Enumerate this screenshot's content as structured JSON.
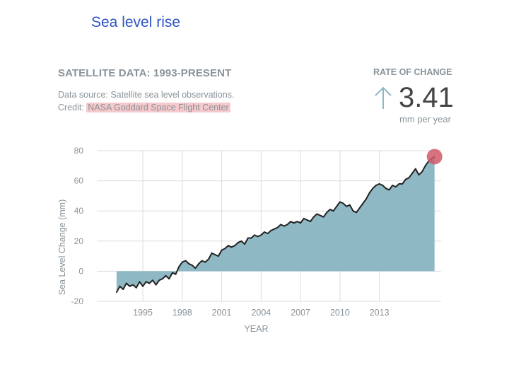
{
  "slide": {
    "title": "Sea level rise"
  },
  "header": {
    "title": "SATELLITE DATA: 1993-PRESENT",
    "source": "Data source: Satellite sea level observations.",
    "credit_prefix": "Credit: ",
    "credit_name": "NASA Goddard Space Flight Center"
  },
  "rate": {
    "label": "RATE OF CHANGE",
    "value": "3.41",
    "unit": "mm per year",
    "icon": "up-arrow-icon"
  },
  "colors": {
    "fill": "#8fb8c5",
    "line": "#222222",
    "marker": "#cf5b67",
    "grid": "#d9dcde",
    "text": "#8a9399",
    "title": "#2f55c6"
  },
  "chart_data": {
    "type": "area",
    "xlabel": "YEAR",
    "ylabel": "Sea Level Change (mm)",
    "xlim": [
      1991.5,
      2017.7
    ],
    "ylim": [
      -20,
      80
    ],
    "xticks": [
      1995,
      1998,
      2001,
      2004,
      2007,
      2010,
      2013
    ],
    "yticks": [
      80,
      60,
      40,
      20,
      0,
      -20
    ],
    "grid": true,
    "series": [
      {
        "x": [
          1993.0,
          1993.25,
          1993.5,
          1993.75,
          1994.0,
          1994.25,
          1994.5,
          1994.75,
          1995.0,
          1995.25,
          1995.5,
          1995.75,
          1996.0,
          1996.25,
          1996.5,
          1996.75,
          1997.0,
          1997.25,
          1997.5,
          1997.75,
          1998.0,
          1998.25,
          1998.5,
          1998.75,
          1999.0,
          1999.25,
          1999.5,
          1999.75,
          2000.0,
          2000.25,
          2000.5,
          2000.75,
          2001.0,
          2001.25,
          2001.5,
          2001.75,
          2002.0,
          2002.25,
          2002.5,
          2002.75,
          2003.0,
          2003.25,
          2003.5,
          2003.75,
          2004.0,
          2004.25,
          2004.5,
          2004.75,
          2005.0,
          2005.25,
          2005.5,
          2005.75,
          2006.0,
          2006.25,
          2006.5,
          2006.75,
          2007.0,
          2007.25,
          2007.5,
          2007.75,
          2008.0,
          2008.25,
          2008.5,
          2008.75,
          2009.0,
          2009.25,
          2009.5,
          2009.75,
          2010.0,
          2010.25,
          2010.5,
          2010.75,
          2011.0,
          2011.25,
          2011.5,
          2011.75,
          2012.0,
          2012.25,
          2012.5,
          2012.75,
          2013.0,
          2013.25,
          2013.5,
          2013.75,
          2014.0,
          2014.25,
          2014.5,
          2014.75,
          2015.0,
          2015.25,
          2015.5,
          2015.75,
          2016.0,
          2016.25,
          2016.5,
          2016.75,
          2017.0,
          2017.2
        ],
        "values": [
          -14,
          -10,
          -12,
          -8,
          -10,
          -9,
          -11,
          -7,
          -10,
          -7,
          -8,
          -6,
          -9,
          -6,
          -5,
          -3,
          -5,
          -1,
          -2,
          3,
          6,
          7,
          5,
          4,
          2,
          5,
          7,
          6,
          8,
          12,
          11,
          10,
          14,
          15,
          17,
          16,
          17,
          19,
          20,
          18,
          22,
          22,
          24,
          23,
          24,
          26,
          25,
          27,
          28,
          29,
          31,
          30,
          31,
          33,
          32,
          33,
          32,
          35,
          34,
          33,
          36,
          38,
          37,
          36,
          39,
          41,
          40,
          43,
          46,
          45,
          43,
          44,
          40,
          39,
          42,
          45,
          48,
          52,
          55,
          57,
          58,
          57,
          55,
          54,
          57,
          56,
          58,
          58,
          61,
          62,
          65,
          68,
          64,
          66,
          70,
          73,
          75,
          76
        ]
      }
    ],
    "highlight": {
      "x": 2017.2,
      "y": 76
    }
  }
}
